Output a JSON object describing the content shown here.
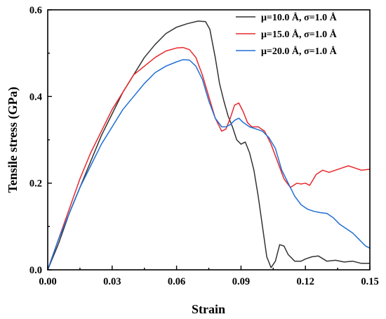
{
  "chart_data": {
    "type": "line",
    "title": "",
    "xlabel": "Strain",
    "ylabel": "Tensile stress (GPa)",
    "xlim": [
      0.0,
      0.15
    ],
    "ylim": [
      0.0,
      0.6
    ],
    "x_ticks": [
      "0.00",
      "0.03",
      "0.06",
      "0.09",
      "0.12",
      "0.15"
    ],
    "y_ticks": [
      "0.0",
      "0.2",
      "0.4",
      "0.6"
    ],
    "grid": false,
    "legend_position": "top-right",
    "series": [
      {
        "name": "μ=10.0 Å, σ=1.0 Å",
        "color": "#333333",
        "x": [
          0.0,
          0.005,
          0.01,
          0.015,
          0.02,
          0.025,
          0.03,
          0.035,
          0.04,
          0.045,
          0.05,
          0.055,
          0.06,
          0.065,
          0.07,
          0.0735,
          0.0755,
          0.078,
          0.08,
          0.082,
          0.084,
          0.086,
          0.088,
          0.09,
          0.092,
          0.094,
          0.096,
          0.098,
          0.1,
          0.102,
          0.104,
          0.106,
          0.108,
          0.11,
          0.112,
          0.115,
          0.118,
          0.12,
          0.123,
          0.126,
          0.13,
          0.134,
          0.138,
          0.142,
          0.146,
          0.15
        ],
        "y": [
          0.0,
          0.06,
          0.13,
          0.19,
          0.25,
          0.31,
          0.36,
          0.41,
          0.45,
          0.49,
          0.52,
          0.545,
          0.56,
          0.568,
          0.574,
          0.573,
          0.555,
          0.49,
          0.43,
          0.39,
          0.355,
          0.33,
          0.3,
          0.29,
          0.295,
          0.27,
          0.23,
          0.17,
          0.1,
          0.03,
          0.005,
          0.02,
          0.058,
          0.055,
          0.035,
          0.02,
          0.02,
          0.025,
          0.03,
          0.032,
          0.02,
          0.022,
          0.018,
          0.02,
          0.015,
          0.015
        ]
      },
      {
        "name": "μ=15.0 Å, σ=1.0 Å",
        "color": "#e8282c",
        "x": [
          0.0,
          0.005,
          0.01,
          0.015,
          0.02,
          0.025,
          0.03,
          0.035,
          0.04,
          0.045,
          0.05,
          0.055,
          0.06,
          0.063,
          0.066,
          0.069,
          0.072,
          0.075,
          0.078,
          0.081,
          0.083,
          0.085,
          0.087,
          0.089,
          0.091,
          0.093,
          0.095,
          0.098,
          0.101,
          0.104,
          0.107,
          0.11,
          0.113,
          0.116,
          0.118,
          0.12,
          0.122,
          0.125,
          0.128,
          0.131,
          0.134,
          0.137,
          0.14,
          0.143,
          0.146,
          0.15
        ],
        "y": [
          0.0,
          0.07,
          0.14,
          0.21,
          0.27,
          0.32,
          0.37,
          0.41,
          0.45,
          0.47,
          0.49,
          0.505,
          0.512,
          0.513,
          0.508,
          0.49,
          0.45,
          0.4,
          0.35,
          0.32,
          0.325,
          0.35,
          0.38,
          0.385,
          0.365,
          0.34,
          0.33,
          0.33,
          0.32,
          0.29,
          0.25,
          0.21,
          0.19,
          0.2,
          0.198,
          0.2,
          0.195,
          0.22,
          0.23,
          0.225,
          0.23,
          0.235,
          0.24,
          0.235,
          0.23,
          0.232
        ]
      },
      {
        "name": "μ=20.0 Å, σ=1.0 Å",
        "color": "#1f6fd6",
        "x": [
          0.0,
          0.005,
          0.01,
          0.015,
          0.02,
          0.025,
          0.03,
          0.035,
          0.04,
          0.045,
          0.05,
          0.055,
          0.06,
          0.063,
          0.066,
          0.069,
          0.072,
          0.075,
          0.078,
          0.081,
          0.083,
          0.085,
          0.087,
          0.089,
          0.091,
          0.094,
          0.097,
          0.1,
          0.103,
          0.106,
          0.109,
          0.112,
          0.115,
          0.118,
          0.121,
          0.124,
          0.127,
          0.13,
          0.133,
          0.136,
          0.139,
          0.142,
          0.145,
          0.148,
          0.15
        ],
        "y": [
          0.0,
          0.07,
          0.13,
          0.19,
          0.24,
          0.29,
          0.33,
          0.37,
          0.4,
          0.43,
          0.455,
          0.47,
          0.48,
          0.485,
          0.484,
          0.47,
          0.44,
          0.39,
          0.35,
          0.33,
          0.33,
          0.335,
          0.345,
          0.35,
          0.34,
          0.33,
          0.325,
          0.32,
          0.305,
          0.28,
          0.23,
          0.2,
          0.17,
          0.15,
          0.14,
          0.135,
          0.132,
          0.13,
          0.12,
          0.105,
          0.095,
          0.085,
          0.07,
          0.055,
          0.05
        ]
      }
    ]
  }
}
